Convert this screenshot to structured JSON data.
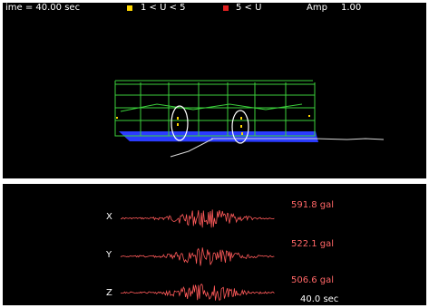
{
  "header": {
    "time_label": "ime = 40.00 sec",
    "legend_low": "1 < U < 5",
    "legend_high": "5 < U",
    "amp_label": "Amp",
    "amp_value": "1.00"
  },
  "colors": {
    "legend_low": "#ffd700",
    "legend_high": "#e02020",
    "frame": "#3bd13b",
    "ground": "#2b3cff",
    "waveform": "#ff5a5a",
    "highlight_ellipse": "#ffffff"
  },
  "waveforms": {
    "duration_label": "40.0 sec",
    "channels": [
      {
        "axis": "X",
        "peak": "591.8 gal"
      },
      {
        "axis": "Y",
        "peak": "522.1 gal"
      },
      {
        "axis": "Z",
        "peak": "506.6 gal"
      }
    ]
  }
}
